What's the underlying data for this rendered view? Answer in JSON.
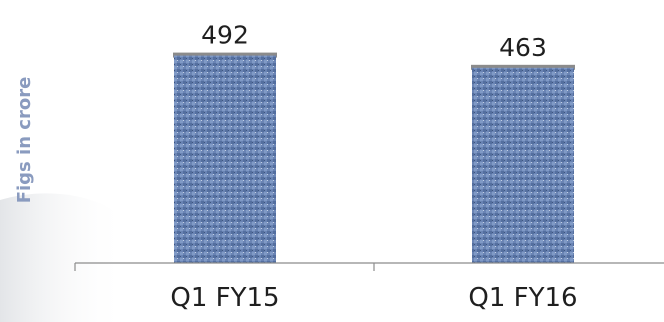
{
  "chart_data": {
    "type": "bar",
    "title": "",
    "xlabel": "",
    "ylabel": "Figs in crore",
    "categories": [
      "Q1 FY15",
      "Q1 FY16"
    ],
    "values": [
      492,
      463
    ],
    "data_labels": [
      "492",
      "463"
    ],
    "ylim": [
      0,
      510
    ],
    "grid": false,
    "legend": "none"
  },
  "colors": {
    "bar": "#6a84b4",
    "bar_dark": "#46608e",
    "bar_light": "#9db0d0",
    "axis": "#8c8c8c",
    "ylabel": "#8a9bbf",
    "background_shape": "#e7e8ea"
  }
}
